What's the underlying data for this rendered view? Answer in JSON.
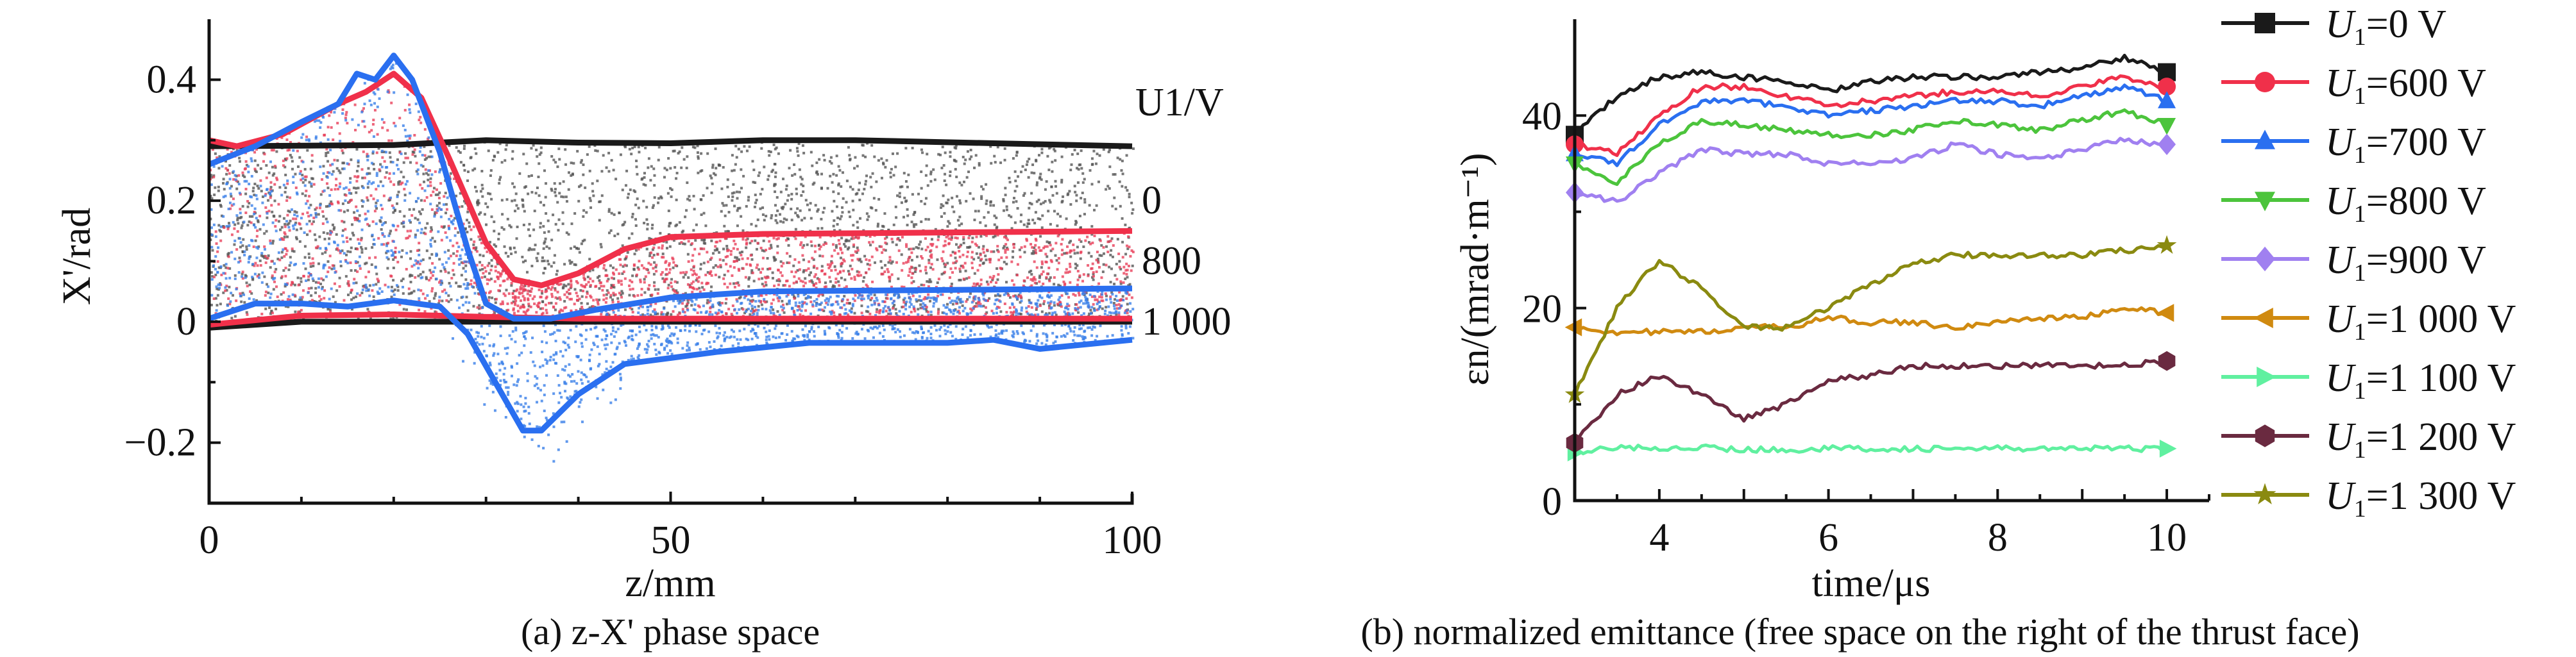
{
  "chart_data": [
    {
      "type": "scatter",
      "caption": "(a) z-X' phase space",
      "xlabel": "z/mm",
      "ylabel": "X'/rad",
      "xlim": [
        0,
        100
      ],
      "ylim": [
        -0.3,
        0.5
      ],
      "xticks": [
        "0",
        "50",
        "100"
      ],
      "xtick_values": [
        0,
        50,
        100
      ],
      "yticks": [
        "0.4",
        "0.2",
        "0",
        "−0.2"
      ],
      "ytick_values": [
        0.4,
        0.2,
        0,
        -0.2
      ],
      "legend_title": "U1/V",
      "series_labels": [
        "0",
        "800",
        "1 000"
      ],
      "series": [
        {
          "name": "0",
          "color": "#1a1a1a",
          "scatter_color": "#555555",
          "upper": [
            [
              0,
              0.29
            ],
            [
              20,
              0.292
            ],
            [
              30,
              0.3
            ],
            [
              40,
              0.296
            ],
            [
              50,
              0.295
            ],
            [
              60,
              0.3
            ],
            [
              70,
              0.3
            ],
            [
              85,
              0.295
            ],
            [
              100,
              0.29
            ]
          ],
          "lower": [
            [
              0,
              -0.01
            ],
            [
              10,
              0.0
            ],
            [
              30,
              0.0
            ],
            [
              100,
              0.0
            ]
          ]
        },
        {
          "name": "800",
          "color": "#f0304a",
          "scatter_color": "#e8405a",
          "upper": [
            [
              0,
              0.3
            ],
            [
              3,
              0.29
            ],
            [
              8,
              0.31
            ],
            [
              14,
              0.36
            ],
            [
              17,
              0.38
            ],
            [
              20,
              0.41
            ],
            [
              23,
              0.37
            ],
            [
              26,
              0.27
            ],
            [
              30,
              0.13
            ],
            [
              33,
              0.07
            ],
            [
              36,
              0.06
            ],
            [
              40,
              0.08
            ],
            [
              45,
              0.12
            ],
            [
              50,
              0.14
            ],
            [
              60,
              0.145
            ],
            [
              100,
              0.15
            ]
          ],
          "lower": [
            [
              0,
              -0.005
            ],
            [
              10,
              0.01
            ],
            [
              20,
              0.012
            ],
            [
              30,
              0.008
            ],
            [
              40,
              0.005
            ],
            [
              100,
              0.005
            ]
          ]
        },
        {
          "name": "1 000",
          "color": "#2a6ff0",
          "scatter_color": "#3a80e8",
          "upper": [
            [
              0,
              0.26
            ],
            [
              5,
              0.29
            ],
            [
              10,
              0.33
            ],
            [
              14,
              0.36
            ],
            [
              16,
              0.41
            ],
            [
              18,
              0.4
            ],
            [
              20,
              0.44
            ],
            [
              22,
              0.4
            ],
            [
              25,
              0.28
            ],
            [
              28,
              0.12
            ],
            [
              30,
              0.03
            ],
            [
              33,
              0.005
            ],
            [
              37,
              0.005
            ],
            [
              42,
              0.02
            ],
            [
              50,
              0.04
            ],
            [
              60,
              0.05
            ],
            [
              100,
              0.055
            ]
          ],
          "lower": [
            [
              0,
              0.005
            ],
            [
              5,
              0.03
            ],
            [
              10,
              0.03
            ],
            [
              15,
              0.025
            ],
            [
              20,
              0.035
            ],
            [
              25,
              0.025
            ],
            [
              28,
              -0.02
            ],
            [
              31,
              -0.1
            ],
            [
              34,
              -0.18
            ],
            [
              36,
              -0.18
            ],
            [
              40,
              -0.12
            ],
            [
              45,
              -0.07
            ],
            [
              55,
              -0.05
            ],
            [
              65,
              -0.035
            ],
            [
              80,
              -0.035
            ],
            [
              85,
              -0.03
            ],
            [
              90,
              -0.045
            ],
            [
              100,
              -0.03
            ]
          ]
        }
      ]
    },
    {
      "type": "line",
      "caption": "(b) normalized emittance (free space on the right of the thrust face)",
      "xlabel": "time/μs",
      "ylabel": "εn/(mrad·m⁻¹)",
      "xlim": [
        3,
        10.5
      ],
      "ylim": [
        0,
        50
      ],
      "xticks": [
        "4",
        "6",
        "8",
        "10"
      ],
      "xtick_values": [
        4,
        6,
        8,
        10
      ],
      "yticks": [
        "0",
        "20",
        "40"
      ],
      "ytick_values": [
        0,
        20,
        40
      ],
      "legend_position": "right",
      "x": [
        3,
        3.5,
        4,
        4.5,
        5,
        5.5,
        6,
        6.5,
        7,
        7.5,
        8,
        8.5,
        9,
        9.5,
        10
      ],
      "series": [
        {
          "name": "U1=0 V",
          "label_var": "U",
          "label_sub": "1",
          "label_rest": "=0 V",
          "color": "#1a1a1a",
          "marker": "square",
          "values": [
            38,
            42,
            44,
            44.5,
            44,
            43.5,
            42.5,
            43.5,
            44,
            44,
            44,
            44.5,
            45,
            46,
            44.5
          ]
        },
        {
          "name": "U1=600 V",
          "label_var": "U",
          "label_sub": "1",
          "label_rest": "=600 V",
          "color": "#f0304a",
          "marker": "circle",
          "values": [
            37,
            36,
            40,
            43,
            43,
            42,
            41,
            41.5,
            42,
            42.5,
            42.5,
            42,
            43,
            44,
            43
          ]
        },
        {
          "name": "U1=700 V",
          "label_var": "U",
          "label_sub": "1",
          "label_rest": "=700 V",
          "color": "#2a6ff0",
          "marker": "triangle-up",
          "values": [
            36,
            35,
            39,
            41.5,
            41.5,
            41,
            40,
            40.5,
            41,
            41.5,
            41.5,
            41,
            42,
            43,
            41.5
          ]
        },
        {
          "name": "U1=800 V",
          "label_var": "U",
          "label_sub": "1",
          "label_rest": "=800 V",
          "color": "#4cc43c",
          "marker": "triangle-down",
          "values": [
            35,
            33,
            37,
            39.5,
            39,
            38.5,
            38,
            38,
            38.5,
            39.5,
            39,
            38.5,
            39.5,
            40.5,
            39
          ]
        },
        {
          "name": "U1=900 V",
          "label_var": "U",
          "label_sub": "1",
          "label_rest": "=900 V",
          "color": "#a080f0",
          "marker": "diamond",
          "values": [
            32,
            31,
            34,
            36.5,
            36,
            36,
            35,
            35,
            35.5,
            37,
            36,
            35.5,
            36.5,
            37.5,
            37
          ]
        },
        {
          "name": "U1=1 000 V",
          "label_var": "U",
          "label_sub": "1",
          "label_rest": "=1 000 V",
          "color": "#d08a10",
          "marker": "triangle-left",
          "values": [
            18,
            17.5,
            17.5,
            17.5,
            18,
            18,
            19,
            18.5,
            18.5,
            18,
            18.5,
            19,
            19,
            20,
            19.5
          ]
        },
        {
          "name": "U1=1 100 V",
          "label_var": "U",
          "label_sub": "1",
          "label_rest": "=1 100 V",
          "color": "#60f0a0",
          "marker": "triangle-right",
          "values": [
            5,
            5.5,
            5.5,
            5.5,
            5.3,
            5.3,
            5.4,
            5.4,
            5.4,
            5.4,
            5.4,
            5.4,
            5.4,
            5.4,
            5.4
          ]
        },
        {
          "name": "U1=1 200 V",
          "label_var": "U",
          "label_sub": "1",
          "label_rest": "=1 200 V",
          "color": "#6a2a40",
          "marker": "hexagon",
          "values": [
            6,
            11,
            13,
            11,
            8.5,
            10,
            12.5,
            13,
            14,
            14,
            14,
            14,
            14,
            14,
            14.5
          ]
        },
        {
          "name": "U1=1 300 V",
          "label_var": "U",
          "label_sub": "1",
          "label_rest": "=1 300 V",
          "color": "#8a8a10",
          "marker": "star",
          "values": [
            11,
            20,
            25,
            22,
            18,
            18,
            20,
            22.5,
            24.5,
            25.5,
            25.5,
            25.5,
            25.5,
            26,
            26.5
          ]
        }
      ]
    }
  ]
}
